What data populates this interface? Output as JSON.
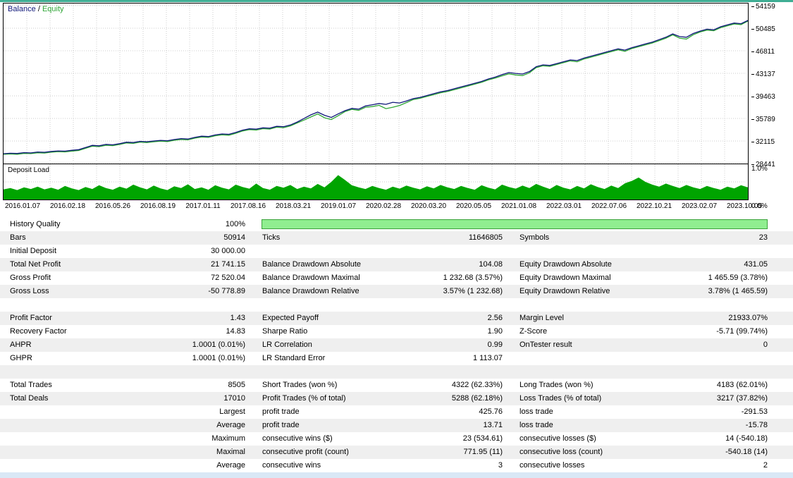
{
  "ui": {
    "legend_separator": " / ",
    "top_border_color": "#3fae94",
    "bottom_band_color": "#d9e8f6",
    "grid_color": "#cdcdcd"
  },
  "chart_data": [
    {
      "type": "line",
      "title": "Balance / Equity",
      "ylim": [
        28441,
        54159
      ],
      "y_ticks": [
        "54159",
        "50485",
        "46811",
        "43137",
        "39463",
        "35789",
        "32115",
        "28441"
      ],
      "x_labels": [
        "2016.01.07",
        "2016.02.18",
        "2016.05.26",
        "2016.08.19",
        "2017.01.11",
        "2017.08.16",
        "2018.03.21",
        "2019.01.07",
        "2020.02.28",
        "2020.03.20",
        "2020.05.05",
        "2021.01.08",
        "2022.03.01",
        "2022.07.06",
        "2022.10.21",
        "2023.02.07",
        "2023.10.05"
      ],
      "legend_position": "top-left",
      "grid": true,
      "series": [
        {
          "name": "Balance",
          "color": "#10187a",
          "values": [
            30050,
            30120,
            30080,
            30220,
            30180,
            30320,
            30280,
            30420,
            30500,
            30460,
            30600,
            30700,
            31050,
            31400,
            31330,
            31560,
            31500,
            31680,
            31920,
            31860,
            32060,
            32000,
            32120,
            32220,
            32160,
            32360,
            32500,
            32440,
            32700,
            32900,
            32840,
            33100,
            33260,
            33200,
            33500,
            33880,
            34100,
            34040,
            34260,
            34200,
            34500,
            34440,
            34720,
            35200,
            35780,
            36380,
            36820,
            36300,
            35950,
            36520,
            37050,
            37420,
            37300,
            37820,
            38020,
            38220,
            38080,
            38420,
            38300,
            38620,
            39020,
            39220,
            39520,
            39820,
            40120,
            40320,
            40620,
            40920,
            41220,
            41520,
            41820,
            42220,
            42520,
            42920,
            43260,
            43120,
            43020,
            43420,
            44220,
            44520,
            44420,
            44720,
            45020,
            45320,
            45220,
            45620,
            45920,
            46220,
            46520,
            46820,
            47120,
            46920,
            47320,
            47620,
            47920,
            48220,
            48620,
            49020,
            49560,
            49120,
            49020,
            49620,
            50020,
            50320,
            50220,
            50720,
            51020,
            51320,
            51220,
            51750
          ]
        },
        {
          "name": "Equity",
          "color": "#2fa636",
          "values": [
            29950,
            30000,
            29960,
            30100,
            30060,
            30200,
            30150,
            30300,
            30380,
            30330,
            30470,
            30570,
            30920,
            31260,
            31200,
            31420,
            31360,
            31550,
            31790,
            31720,
            31930,
            31860,
            31990,
            32090,
            32020,
            32230,
            32370,
            32300,
            32570,
            32770,
            32700,
            32960,
            33130,
            33060,
            33370,
            33740,
            33960,
            33900,
            34120,
            34050,
            34360,
            34290,
            34570,
            35050,
            35530,
            36030,
            36520,
            35900,
            35600,
            36220,
            36900,
            37270,
            37100,
            37620,
            37720,
            37920,
            37380,
            37620,
            37900,
            38370,
            38870,
            39070,
            39370,
            39670,
            39970,
            40170,
            40470,
            40770,
            41070,
            41370,
            41670,
            42070,
            42370,
            42720,
            43060,
            42870,
            42770,
            43220,
            44070,
            44370,
            44270,
            44570,
            44870,
            45170,
            45020,
            45470,
            45770,
            46070,
            46370,
            46670,
            46970,
            46720,
            47170,
            47470,
            47770,
            48070,
            48470,
            48870,
            49410,
            48870,
            48720,
            49420,
            49870,
            50170,
            50070,
            50570,
            50870,
            51170,
            51070,
            51650
          ]
        }
      ]
    },
    {
      "type": "area",
      "title": "Deposit Load",
      "ylim": [
        0,
        1.0
      ],
      "y_ticks": [
        "1.0%",
        "0.0%"
      ],
      "grid": true,
      "series": [
        {
          "name": "Deposit Load",
          "color": "#00a400",
          "values": [
            0.3,
            0.34,
            0.28,
            0.36,
            0.31,
            0.38,
            0.3,
            0.35,
            0.29,
            0.4,
            0.33,
            0.28,
            0.37,
            0.31,
            0.42,
            0.34,
            0.29,
            0.38,
            0.32,
            0.44,
            0.36,
            0.3,
            0.41,
            0.33,
            0.28,
            0.39,
            0.34,
            0.45,
            0.31,
            0.36,
            0.29,
            0.42,
            0.35,
            0.3,
            0.44,
            0.37,
            0.32,
            0.47,
            0.34,
            0.29,
            0.4,
            0.35,
            0.43,
            0.31,
            0.38,
            0.33,
            0.46,
            0.36,
            0.52,
            0.72,
            0.58,
            0.42,
            0.36,
            0.31,
            0.4,
            0.34,
            0.29,
            0.38,
            0.32,
            0.41,
            0.35,
            0.3,
            0.39,
            0.33,
            0.43,
            0.36,
            0.31,
            0.4,
            0.34,
            0.29,
            0.42,
            0.35,
            0.3,
            0.44,
            0.37,
            0.32,
            0.41,
            0.34,
            0.46,
            0.38,
            0.31,
            0.43,
            0.35,
            0.3,
            0.4,
            0.33,
            0.45,
            0.37,
            0.31,
            0.41,
            0.34,
            0.48,
            0.55,
            0.65,
            0.52,
            0.44,
            0.38,
            0.47,
            0.4,
            0.34,
            0.43,
            0.36,
            0.31,
            0.4,
            0.34,
            0.29,
            0.38,
            0.33,
            0.42,
            0.36
          ]
        }
      ]
    }
  ],
  "stats": {
    "bar_fill": "#90ee90",
    "bar_border": "#3da23d",
    "stripe_color": "#efefef",
    "rows": [
      {
        "c": [
          "History Quality",
          "100%",
          "",
          "",
          "",
          ""
        ],
        "bar": true
      },
      {
        "c": [
          "Bars",
          "50914",
          "Ticks",
          "11646805",
          "Symbols",
          "23"
        ]
      },
      {
        "c": [
          "Initial Deposit",
          "30 000.00",
          "",
          "",
          "",
          ""
        ]
      },
      {
        "c": [
          "Total Net Profit",
          "21 741.15",
          "Balance Drawdown Absolute",
          "104.08",
          "Equity Drawdown Absolute",
          "431.05"
        ]
      },
      {
        "c": [
          "Gross Profit",
          "72 520.04",
          "Balance Drawdown Maximal",
          "1 232.68 (3.57%)",
          "Equity Drawdown Maximal",
          "1 465.59 (3.78%)"
        ]
      },
      {
        "c": [
          "Gross Loss",
          "-50 778.89",
          "Balance Drawdown Relative",
          "3.57% (1 232.68)",
          "Equity Drawdown Relative",
          "3.78% (1 465.59)"
        ]
      },
      {
        "c": [
          "",
          "",
          "",
          "",
          "",
          ""
        ]
      },
      {
        "c": [
          "Profit Factor",
          "1.43",
          "Expected Payoff",
          "2.56",
          "Margin Level",
          "21933.07%"
        ]
      },
      {
        "c": [
          "Recovery Factor",
          "14.83",
          "Sharpe Ratio",
          "1.90",
          "Z-Score",
          "-5.71 (99.74%)"
        ]
      },
      {
        "c": [
          "AHPR",
          "1.0001 (0.01%)",
          "LR Correlation",
          "0.99",
          "OnTester result",
          "0"
        ]
      },
      {
        "c": [
          "GHPR",
          "1.0001 (0.01%)",
          "LR Standard Error",
          "1 113.07",
          "",
          ""
        ]
      },
      {
        "c": [
          "",
          "",
          "",
          "",
          "",
          ""
        ]
      },
      {
        "c": [
          "Total Trades",
          "8505",
          "Short Trades (won %)",
          "4322 (62.33%)",
          "Long Trades (won %)",
          "4183 (62.01%)"
        ]
      },
      {
        "c": [
          "Total Deals",
          "17010",
          "Profit Trades (% of total)",
          "5288 (62.18%)",
          "Loss Trades (% of total)",
          "3217 (37.82%)"
        ]
      },
      {
        "c": [
          "",
          "Largest",
          "profit trade",
          "425.76",
          "loss trade",
          "-291.53"
        ]
      },
      {
        "c": [
          "",
          "Average",
          "profit trade",
          "13.71",
          "loss trade",
          "-15.78"
        ]
      },
      {
        "c": [
          "",
          "Maximum",
          "consecutive wins ($)",
          "23 (534.61)",
          "consecutive losses ($)",
          "14 (-540.18)"
        ]
      },
      {
        "c": [
          "",
          "Maximal",
          "consecutive profit (count)",
          "771.95 (11)",
          "consecutive loss (count)",
          "-540.18 (14)"
        ]
      },
      {
        "c": [
          "",
          "Average",
          "consecutive wins",
          "3",
          "consecutive losses",
          "2"
        ]
      }
    ]
  }
}
